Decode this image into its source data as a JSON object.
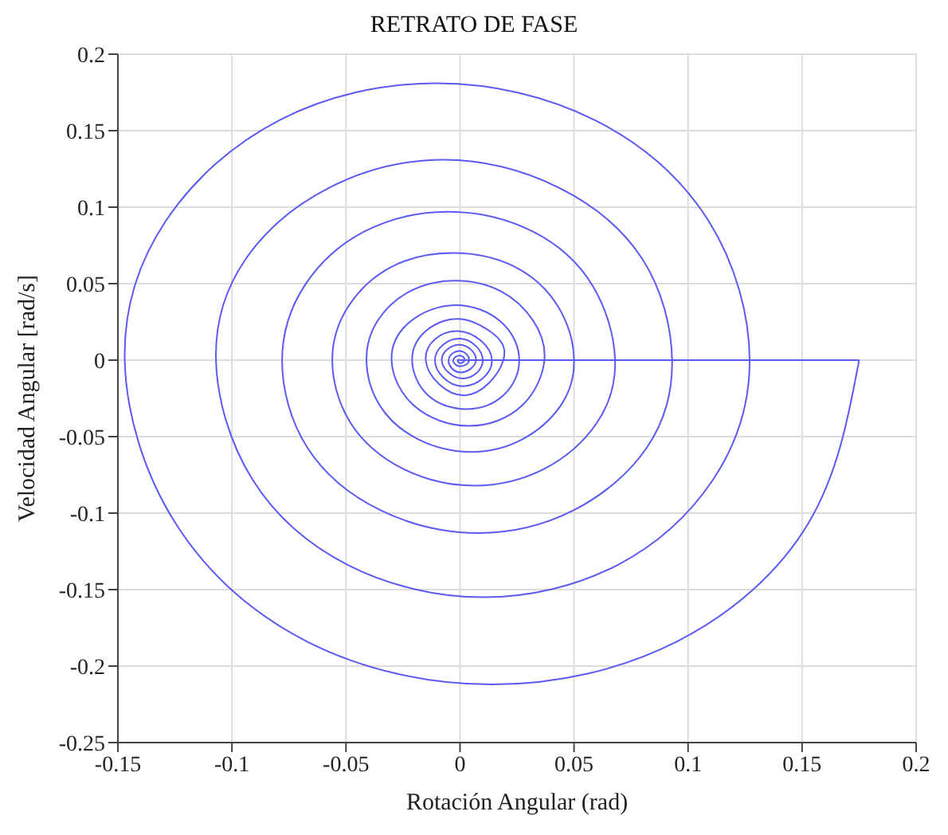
{
  "chart_data": {
    "type": "line",
    "title": "RETRATO DE FASE",
    "xlabel": "Rotación Angular (rad)",
    "ylabel": "Velocidad Angular [rad/s]",
    "series": [
      {
        "color": "#5a5af5",
        "x": [
          0,
          0.175
        ],
        "values": [
          0,
          0
        ]
      },
      {
        "color": "#5a5af5",
        "x": [
          0.175,
          0.153,
          0.095,
          0.014,
          -0.067,
          -0.125,
          -0.147,
          -0.129,
          -0.079,
          -0.01,
          0.059,
          0.109,
          0.127,
          0.111,
          0.069,
          0.01,
          -0.049,
          -0.091,
          -0.107,
          -0.094,
          -0.057,
          -0.007,
          0.043,
          0.08,
          0.093,
          0.082,
          0.05,
          0.008,
          -0.035,
          -0.067,
          -0.078,
          -0.068,
          -0.042,
          -0.005,
          0.032,
          0.058,
          0.068,
          0.06,
          0.037,
          0.006,
          -0.025,
          -0.048,
          -0.056,
          -0.049,
          -0.03,
          -0.003,
          0.024,
          0.043,
          0.05,
          0.044,
          0.027,
          0.005,
          -0.018,
          -0.035,
          -0.041,
          -0.036,
          -0.022,
          -0.002,
          0.018,
          0.032,
          0.037,
          0.027,
          0.004,
          -0.02,
          -0.03,
          -0.022,
          -0.002,
          0.018,
          0.026,
          0.019,
          0.003,
          -0.014,
          -0.021,
          -0.015,
          -0.001,
          0.013,
          0.019,
          0.002,
          -0.015,
          -0.001,
          0.014,
          0.001,
          -0.011,
          0,
          0.01,
          0.001,
          -0.008,
          0,
          0.007,
          0,
          -0.005,
          0,
          0.004,
          0,
          -0.003,
          0,
          0.002,
          0,
          -0.001,
          0
        ],
        "values": [
          0,
          -0.106,
          -0.184,
          -0.212,
          -0.184,
          -0.106,
          0,
          0.091,
          0.157,
          0.181,
          0.157,
          0.091,
          0,
          -0.078,
          -0.134,
          -0.155,
          -0.134,
          -0.078,
          0,
          0.066,
          0.113,
          0.131,
          0.113,
          0.066,
          0,
          -0.057,
          -0.098,
          -0.113,
          -0.098,
          -0.057,
          0,
          0.049,
          0.084,
          0.097,
          0.084,
          0.049,
          0,
          -0.041,
          -0.071,
          -0.082,
          -0.071,
          -0.041,
          0,
          0.035,
          0.061,
          0.07,
          0.061,
          0.035,
          0,
          -0.03,
          -0.052,
          -0.06,
          -0.052,
          -0.03,
          0,
          0.026,
          0.045,
          0.052,
          0.045,
          0.026,
          0,
          -0.03,
          -0.043,
          -0.03,
          0,
          0.025,
          0.036,
          0.025,
          0,
          -0.023,
          -0.032,
          -0.023,
          0,
          0.019,
          0.027,
          0.019,
          0,
          -0.023,
          0,
          0.019,
          0,
          -0.017,
          0,
          0.014,
          0,
          -0.012,
          0,
          0.01,
          0,
          -0.008,
          0,
          0.006,
          0,
          -0.004,
          0,
          0.003,
          0,
          -0.002,
          0,
          0
        ]
      }
    ],
    "xlim": [
      -0.15,
      0.2
    ],
    "xticks": [
      -0.15,
      -0.1,
      -0.05,
      0,
      0.05,
      0.1,
      0.15,
      0.2
    ],
    "ylim": [
      -0.25,
      0.2
    ],
    "yticks": [
      -0.25,
      -0.2,
      -0.15,
      -0.1,
      -0.05,
      0,
      0.05,
      0.1,
      0.15,
      0.2
    ],
    "grid": true,
    "marker": "none",
    "line_style": "solid"
  }
}
